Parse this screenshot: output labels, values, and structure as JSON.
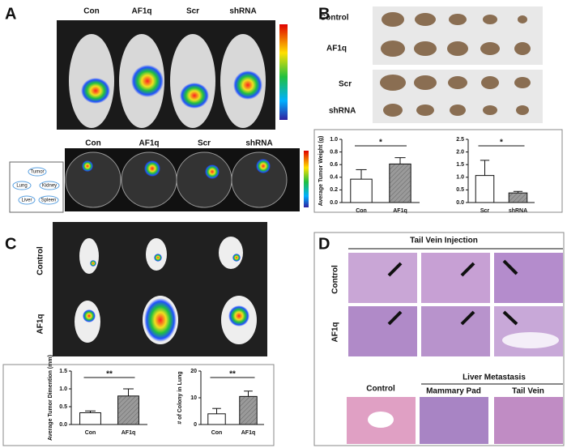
{
  "panels": {
    "a": "A",
    "b": "B",
    "c": "C",
    "d": "D"
  },
  "panel_a": {
    "top_labels": [
      "Con",
      "AF1q",
      "Scr",
      "shRNA"
    ],
    "bottom_labels": [
      "Con",
      "AF1q",
      "Scr",
      "shRNA"
    ],
    "organs": [
      "Tumor",
      "Lung",
      "Kidney",
      "Liver",
      "Spleen"
    ]
  },
  "panel_b": {
    "row_labels": [
      "Control",
      "AF1q",
      "Scr",
      "shRNA"
    ]
  },
  "panel_c": {
    "row_labels": [
      "Control",
      "AF1q"
    ]
  },
  "panel_d": {
    "title": "Tail Vein Injection",
    "row_labels": [
      "Control",
      "AF1q"
    ],
    "liver_title": "Liver Metastasis",
    "liver_labels": [
      "Control",
      "Mammary Pad",
      "Tail Vein"
    ]
  },
  "chart_data": [
    {
      "type": "bar",
      "ylabel": "Average Tumor Weight (g)",
      "categories": [
        "Con",
        "AF1q"
      ],
      "values": [
        0.37,
        0.61
      ],
      "errors": [
        0.15,
        0.1
      ],
      "colors": [
        "#ffffff",
        "#9a9a9a"
      ],
      "significance": "*",
      "ylim": [
        0,
        1.0
      ],
      "yticks": [
        {
          "value": 0,
          "label": "0.0"
        },
        0.2,
        0.4,
        0.6,
        0.8,
        {
          "value": 1.0,
          "label": "1.0"
        }
      ]
    },
    {
      "type": "bar",
      "ylabel": "",
      "categories": [
        "Scr",
        "shRNA"
      ],
      "values": [
        1.07,
        0.38
      ],
      "errors": [
        0.6,
        0.06
      ],
      "colors": [
        "#ffffff",
        "#9a9a9a"
      ],
      "significance": "*",
      "ylim": [
        0,
        2.5
      ],
      "yticks": [
        {
          "value": 0,
          "label": "0.0"
        },
        0.5,
        {
          "value": 1.0,
          "label": "1.0"
        },
        1.5,
        {
          "value": 2.0,
          "label": "2.0"
        },
        2.5
      ]
    },
    {
      "type": "bar",
      "ylabel": "Average Tumor Dimention (mm)",
      "categories": [
        "Con",
        "AF1q"
      ],
      "values": [
        0.33,
        0.8
      ],
      "errors": [
        0.05,
        0.2
      ],
      "colors": [
        "#ffffff",
        "#9a9a9a"
      ],
      "significance": "**",
      "ylim": [
        0,
        1.5
      ],
      "yticks": [
        {
          "value": 0,
          "label": "0.0"
        },
        0.5,
        {
          "value": 1.0,
          "label": "1.0"
        },
        1.5
      ]
    },
    {
      "type": "bar",
      "ylabel": "# of Colony in Lung",
      "categories": [
        "Con",
        "AF1q"
      ],
      "values": [
        4,
        10.5
      ],
      "errors": [
        2,
        2
      ],
      "colors": [
        "#ffffff",
        "#9a9a9a"
      ],
      "significance": "**",
      "ylim": [
        0,
        20
      ],
      "yticks": [
        0,
        10,
        20
      ]
    }
  ]
}
